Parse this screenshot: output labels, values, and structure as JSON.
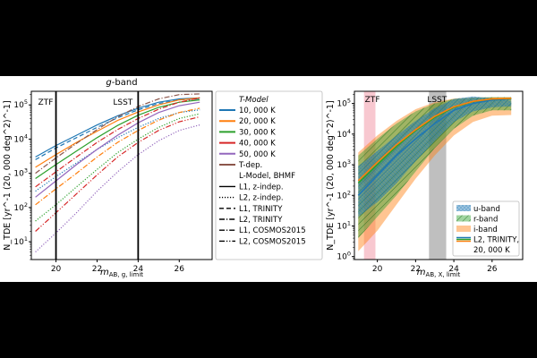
{
  "chart_data": [
    {
      "type": "line",
      "title": "g-band",
      "xlabel": "m_AB, g, limit",
      "xlabel_main": "m",
      "xlabel_sub": "AB, g, limit",
      "ylabel": "N_TDE [yr^-1 (20, 000 deg^2)^-1]",
      "xlim": [
        18.8,
        27.6
      ],
      "ylim": [
        3,
        250000
      ],
      "yscale": "log",
      "x_ticks": [
        20,
        22,
        24,
        26
      ],
      "y_ticks": [
        {
          "exp": 1,
          "label": "10^1"
        },
        {
          "exp": 2,
          "label": "10^2"
        },
        {
          "exp": 3,
          "label": "10^3"
        },
        {
          "exp": 4,
          "label": "10^4"
        },
        {
          "exp": 5,
          "label": "10^5"
        }
      ],
      "vlines": [
        {
          "x": 20,
          "label": "ZTF"
        },
        {
          "x": 24,
          "label": "LSST"
        }
      ],
      "temperature_colors": [
        "#1f77b4",
        "#ff7f0e",
        "#2ca02c",
        "#d62728",
        "#9467bd",
        "#8c564b"
      ],
      "linestyles": [
        "solid",
        "dotted",
        "dashed",
        "dashdot",
        "dashdot",
        "dashdotdot"
      ],
      "series_x": [
        19,
        20,
        21,
        22,
        23,
        24,
        25,
        26,
        27
      ],
      "series": [
        {
          "name": "10,000 K L1 z-indep.",
          "temperature": "10, 000 K",
          "model": "L1, z-indep.",
          "values": [
            3000,
            6500,
            13000,
            26000,
            48000,
            80000,
            120000,
            150000,
            160000
          ]
        },
        {
          "name": "10,000 K L2 z-indep.",
          "temperature": "10, 000 K",
          "model": "L2, z-indep.",
          "values": [
            300,
            800,
            2000,
            5000,
            11000,
            22000,
            40000,
            60000,
            72000
          ]
        },
        {
          "name": "10,000 K L1 TRINITY",
          "temperature": "10, 000 K",
          "model": "L1, TRINITY",
          "values": [
            2500,
            5500,
            11000,
            22000,
            42000,
            72000,
            110000,
            140000,
            150000
          ]
        },
        {
          "name": "20,000 K L1 z-indep.",
          "temperature": "20, 000 K",
          "model": "L1, z-indep.",
          "values": [
            1500,
            3500,
            8000,
            17000,
            35000,
            62000,
            100000,
            140000,
            160000
          ]
        },
        {
          "name": "20,000 K L2 TRINITY",
          "temperature": "20, 000 K",
          "model": "L2, TRINITY",
          "values": [
            120,
            350,
            1000,
            3000,
            8000,
            18000,
            36000,
            60000,
            80000
          ]
        },
        {
          "name": "30,000 K L1 z-indep.",
          "temperature": "30, 000 K",
          "model": "L1, z-indep.",
          "values": [
            700,
            1800,
            4500,
            11000,
            25000,
            50000,
            85000,
            120000,
            140000
          ]
        },
        {
          "name": "30,000 K L2 z-indep.",
          "temperature": "30, 000 K",
          "model": "L2, z-indep.",
          "values": [
            40,
            120,
            400,
            1300,
            4000,
            10000,
            22000,
            40000,
            55000
          ]
        },
        {
          "name": "40,000 K L1 COSMOS2015",
          "temperature": "40, 000 K",
          "model": "L1, COSMOS2015",
          "values": [
            400,
            1100,
            3000,
            8000,
            19000,
            40000,
            75000,
            120000,
            160000
          ]
        },
        {
          "name": "40,000 K L2 COSMOS2015",
          "temperature": "40, 000 K",
          "model": "L2, COSMOS2015",
          "values": [
            20,
            70,
            250,
            900,
            3000,
            8000,
            18000,
            32000,
            45000
          ]
        },
        {
          "name": "50,000 K L1 z-indep.",
          "temperature": "50, 000 K",
          "model": "L1, z-indep.",
          "values": [
            200,
            600,
            1800,
            5000,
            13000,
            30000,
            60000,
            95000,
            120000
          ]
        },
        {
          "name": "50,000 K L2 z-indep.",
          "temperature": "50, 000 K",
          "model": "L2, z-indep.",
          "values": [
            5,
            18,
            70,
            300,
            1100,
            3500,
            9000,
            18000,
            26000
          ]
        },
        {
          "name": "T-dep. L1 COSMOS2015",
          "temperature": "T-dep.",
          "model": "L1, COSMOS2015",
          "values": [
            1000,
            2800,
            7500,
            19000,
            45000,
            90000,
            150000,
            200000,
            210000
          ]
        }
      ],
      "legend": {
        "placement": "right, outside",
        "title1": "T-Model",
        "temperatures": [
          {
            "label": "10, 000 K",
            "color": "#1f77b4"
          },
          {
            "label": "20, 000 K",
            "color": "#ff7f0e"
          },
          {
            "label": "30, 000 K",
            "color": "#2ca02c"
          },
          {
            "label": "40, 000 K",
            "color": "#d62728"
          },
          {
            "label": "50, 000 K",
            "color": "#9467bd"
          },
          {
            "label": "T-dep.",
            "color": "#8c564b"
          }
        ],
        "title2": "L-Model, BHMF",
        "models": [
          {
            "label": "L1, z-indep.",
            "style": "solid"
          },
          {
            "label": "L2, z-indep.",
            "style": "dotted"
          },
          {
            "label": "L1, TRINITY",
            "style": "dashed"
          },
          {
            "label": "L2, TRINITY",
            "style": "dashdot"
          },
          {
            "label": "L1, COSMOS2015",
            "style": "dashdot"
          },
          {
            "label": "L2, COSMOS2015",
            "style": "dashdotdot"
          }
        ]
      }
    },
    {
      "type": "area",
      "title": "",
      "xlabel": "m_AB, X, limit",
      "xlabel_main": "m",
      "xlabel_sub": "AB, X, limit",
      "ylabel": "N_TDE [yr^-1 (20, 000 deg^2)^-1]",
      "xlim": [
        18.8,
        27.6
      ],
      "ylim": [
        0.8,
        250000
      ],
      "yscale": "log",
      "x_ticks": [
        20,
        22,
        24,
        26
      ],
      "y_ticks": [
        {
          "exp": 0,
          "label": "10^0"
        },
        {
          "exp": 1,
          "label": "10^1"
        },
        {
          "exp": 2,
          "label": "10^2"
        },
        {
          "exp": 3,
          "label": "10^3"
        },
        {
          "exp": 4,
          "label": "10^4"
        },
        {
          "exp": 5,
          "label": "10^5"
        }
      ],
      "regions": [
        {
          "label": "ZTF",
          "x0": 19.3,
          "x1": 19.9,
          "color": "#f8c8d0"
        },
        {
          "label": "LSST",
          "x0": 22.7,
          "x1": 23.6,
          "color": "#bfbfbf"
        }
      ],
      "x": [
        19,
        20,
        21,
        22,
        23,
        24,
        25,
        26,
        27
      ],
      "bands": [
        {
          "name": "u-band",
          "color": "#1f77b4",
          "hatch": "dots",
          "lower": [
            20,
            60,
            250,
            1300,
            6000,
            25000,
            55000,
            75000,
            80000
          ],
          "upper": [
            900,
            2800,
            9000,
            27000,
            70000,
            140000,
            170000,
            150000,
            120000
          ]
        },
        {
          "name": "r-band",
          "color": "#2ca02c",
          "hatch": "diag",
          "lower": [
            4,
            20,
            100,
            600,
            3500,
            15000,
            40000,
            60000,
            60000
          ],
          "upper": [
            2000,
            7000,
            22000,
            55000,
            100000,
            140000,
            155000,
            160000,
            160000
          ]
        },
        {
          "name": "i-band",
          "color": "#ff7f0e",
          "hatch": "none",
          "lower": [
            1.5,
            7,
            50,
            350,
            2000,
            9000,
            25000,
            40000,
            42000
          ],
          "upper": [
            2500,
            9000,
            27000,
            65000,
            110000,
            145000,
            155000,
            160000,
            160000
          ]
        }
      ],
      "lines": [
        {
          "name": "L2, TRINITY, 20,000 K (u)",
          "color": "#1f77b4",
          "values": [
            100,
            450,
            2000,
            7000,
            22000,
            60000,
            100000,
            130000,
            140000
          ]
        },
        {
          "name": "L2, TRINITY, 20,000 K (r)",
          "color": "#2ca02c",
          "values": [
            250,
            1000,
            4000,
            13000,
            35000,
            75000,
            115000,
            140000,
            145000
          ]
        },
        {
          "name": "L2, TRINITY, 20,000 K (i)",
          "color": "#ff7f0e",
          "values": [
            300,
            1200,
            4500,
            14000,
            38000,
            78000,
            118000,
            142000,
            148000
          ]
        }
      ],
      "legend": {
        "placement": "bottom-right",
        "items": [
          {
            "label": "u-band",
            "color": "#1f77b4",
            "kind": "patch-dots"
          },
          {
            "label": "r-band",
            "color": "#2ca02c",
            "kind": "patch-diag"
          },
          {
            "label": "i-band",
            "color": "#ff7f0e",
            "kind": "patch"
          },
          {
            "label": "L2, TRINITY,",
            "color": "#1f77b4",
            "kind": "lines"
          },
          {
            "label": "20, 000 K",
            "color": "",
            "kind": "none"
          }
        ]
      }
    }
  ]
}
